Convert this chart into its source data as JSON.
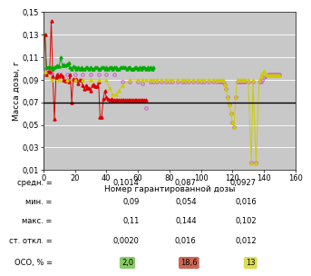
{
  "green_x": [
    1,
    2,
    3,
    4,
    5,
    6,
    7,
    8,
    9,
    10,
    11,
    12,
    13,
    14,
    15,
    16,
    17,
    18,
    19,
    20,
    21,
    22,
    23,
    24,
    25,
    26,
    27,
    28,
    29,
    30,
    31,
    32,
    33,
    34,
    35,
    36,
    37,
    38,
    39,
    40,
    41,
    42,
    43,
    44,
    45,
    46,
    47,
    48,
    49,
    50,
    51,
    52,
    53,
    54,
    55,
    56,
    57,
    58,
    59,
    60,
    61,
    62,
    63,
    64,
    65,
    66,
    67,
    68,
    69,
    70
  ],
  "green_y": [
    0.13,
    0.101,
    0.101,
    0.101,
    0.101,
    0.1,
    0.101,
    0.102,
    0.103,
    0.102,
    0.11,
    0.103,
    0.104,
    0.103,
    0.104,
    0.105,
    0.101,
    0.1,
    0.102,
    0.101,
    0.1,
    0.101,
    0.1,
    0.101,
    0.1,
    0.1,
    0.101,
    0.101,
    0.1,
    0.101,
    0.1,
    0.1,
    0.101,
    0.101,
    0.1,
    0.1,
    0.101,
    0.101,
    0.1,
    0.101,
    0.1,
    0.101,
    0.101,
    0.1,
    0.101,
    0.101,
    0.1,
    0.1,
    0.101,
    0.101,
    0.101,
    0.101,
    0.1,
    0.101,
    0.101,
    0.1,
    0.1,
    0.101,
    0.101,
    0.1,
    0.101,
    0.1,
    0.101,
    0.101,
    0.1,
    0.101,
    0.1,
    0.101,
    0.1,
    0.101
  ],
  "red_x": [
    1,
    2,
    3,
    4,
    5,
    6,
    7,
    8,
    9,
    10,
    11,
    12,
    13,
    14,
    15,
    16,
    17,
    18,
    19,
    20,
    21,
    22,
    23,
    24,
    25,
    26,
    27,
    28,
    29,
    30,
    31,
    32,
    33,
    34,
    35,
    36,
    37,
    38,
    39,
    40,
    41,
    42,
    43,
    44,
    45,
    46,
    47,
    48,
    49,
    50,
    51,
    52,
    53,
    54,
    55,
    56,
    57,
    58,
    59,
    60,
    61,
    62,
    63,
    64,
    65
  ],
  "red_y": [
    0.13,
    0.095,
    0.097,
    0.097,
    0.142,
    0.093,
    0.055,
    0.092,
    0.095,
    0.093,
    0.095,
    0.093,
    0.09,
    0.089,
    0.09,
    0.088,
    0.095,
    0.07,
    0.091,
    0.09,
    0.091,
    0.087,
    0.09,
    0.09,
    0.085,
    0.082,
    0.085,
    0.083,
    0.083,
    0.08,
    0.085,
    0.086,
    0.084,
    0.084,
    0.088,
    0.057,
    0.057,
    0.073,
    0.08,
    0.075,
    0.073,
    0.072,
    0.073,
    0.072,
    0.072,
    0.072,
    0.072,
    0.072,
    0.072,
    0.072,
    0.072,
    0.072,
    0.072,
    0.072,
    0.072,
    0.072,
    0.072,
    0.072,
    0.072,
    0.072,
    0.072,
    0.072,
    0.072,
    0.072,
    0.072
  ],
  "pink_x": [
    1,
    5,
    10,
    15,
    20,
    25,
    30,
    35,
    40,
    45,
    50,
    55,
    60,
    63,
    65,
    68,
    70,
    72,
    75,
    78,
    80,
    82,
    85,
    88,
    90,
    92,
    95,
    98,
    100,
    102,
    105,
    108,
    110,
    112,
    113,
    114,
    115,
    116,
    117,
    118,
    119,
    120,
    121,
    122,
    123,
    124,
    125,
    126,
    127,
    128,
    130,
    132,
    133,
    135,
    137,
    138,
    139,
    140,
    141,
    142,
    143,
    144,
    145,
    146,
    147,
    148,
    149,
    150
  ],
  "pink_y": [
    0.097,
    0.096,
    0.095,
    0.095,
    0.095,
    0.095,
    0.095,
    0.095,
    0.095,
    0.095,
    0.088,
    0.088,
    0.088,
    0.087,
    0.065,
    0.088,
    0.088,
    0.088,
    0.088,
    0.088,
    0.088,
    0.088,
    0.088,
    0.088,
    0.088,
    0.088,
    0.088,
    0.088,
    0.088,
    0.088,
    0.088,
    0.088,
    0.088,
    0.088,
    0.088,
    0.088,
    0.086,
    0.082,
    0.075,
    0.068,
    0.06,
    0.052,
    0.048,
    0.075,
    0.088,
    0.088,
    0.088,
    0.088,
    0.088,
    0.088,
    0.088,
    0.017,
    0.088,
    0.017,
    0.088,
    0.088,
    0.09,
    0.092,
    0.093,
    0.094,
    0.095,
    0.095,
    0.095,
    0.095,
    0.095,
    0.095,
    0.095,
    0.095
  ],
  "yellow_x": [
    1,
    5,
    10,
    15,
    20,
    25,
    30,
    35,
    40,
    42,
    44,
    46,
    48,
    50,
    55,
    60,
    63,
    65,
    68,
    70,
    72,
    75,
    78,
    80,
    82,
    85,
    88,
    90,
    92,
    95,
    98,
    100,
    102,
    105,
    108,
    110,
    112,
    113,
    114,
    115,
    116,
    117,
    118,
    119,
    120,
    121,
    122,
    123,
    124,
    125,
    126,
    127,
    128,
    130,
    132,
    133,
    135,
    137,
    138,
    139,
    140,
    141,
    142,
    143,
    144,
    145,
    146,
    147,
    148,
    149,
    150
  ],
  "yellow_y": [
    0.097,
    0.09,
    0.09,
    0.09,
    0.09,
    0.09,
    0.09,
    0.09,
    0.09,
    0.083,
    0.077,
    0.077,
    0.08,
    0.085,
    0.09,
    0.09,
    0.09,
    0.09,
    0.09,
    0.09,
    0.09,
    0.09,
    0.09,
    0.09,
    0.09,
    0.09,
    0.09,
    0.09,
    0.09,
    0.09,
    0.09,
    0.09,
    0.09,
    0.09,
    0.09,
    0.09,
    0.09,
    0.09,
    0.09,
    0.086,
    0.082,
    0.075,
    0.068,
    0.06,
    0.052,
    0.048,
    0.075,
    0.09,
    0.09,
    0.09,
    0.09,
    0.09,
    0.09,
    0.09,
    0.016,
    0.09,
    0.016,
    0.09,
    0.093,
    0.096,
    0.098,
    0.095,
    0.094,
    0.094,
    0.094,
    0.094,
    0.094,
    0.094,
    0.094,
    0.094,
    0.094
  ],
  "hline_y": 0.07,
  "xlim": [
    0,
    160
  ],
  "ylim": [
    0.01,
    0.15
  ],
  "yticks": [
    0.01,
    0.03,
    0.05,
    0.07,
    0.09,
    0.11,
    0.13,
    0.15
  ],
  "xticks": [
    0,
    20,
    40,
    60,
    80,
    100,
    120,
    140,
    160
  ],
  "xlabel": "Номер гарантированной дозы",
  "ylabel": "Масса дозы, г",
  "bg_color": "#c8c8c8",
  "table_labels": [
    "средн. =",
    "мин. =",
    "макс. =",
    "ст. откл. =",
    "ОСО, % ="
  ],
  "col1_vals": [
    "0,1014",
    "0,09",
    "0,11",
    "0,0020",
    "2,0"
  ],
  "col2_vals": [
    "0,087",
    "0,054",
    "0,144",
    "0,016",
    "18,6"
  ],
  "col3_vals": [
    "0,0927",
    "0,016",
    "0,102",
    "0,012",
    "13"
  ],
  "oso_colors": [
    "#88cc66",
    "#cc6655",
    "#dddd55"
  ],
  "green_color": "#00aa00",
  "red_color": "#dd0000",
  "pink_color": "#cc66cc",
  "yellow_color": "#cccc00"
}
